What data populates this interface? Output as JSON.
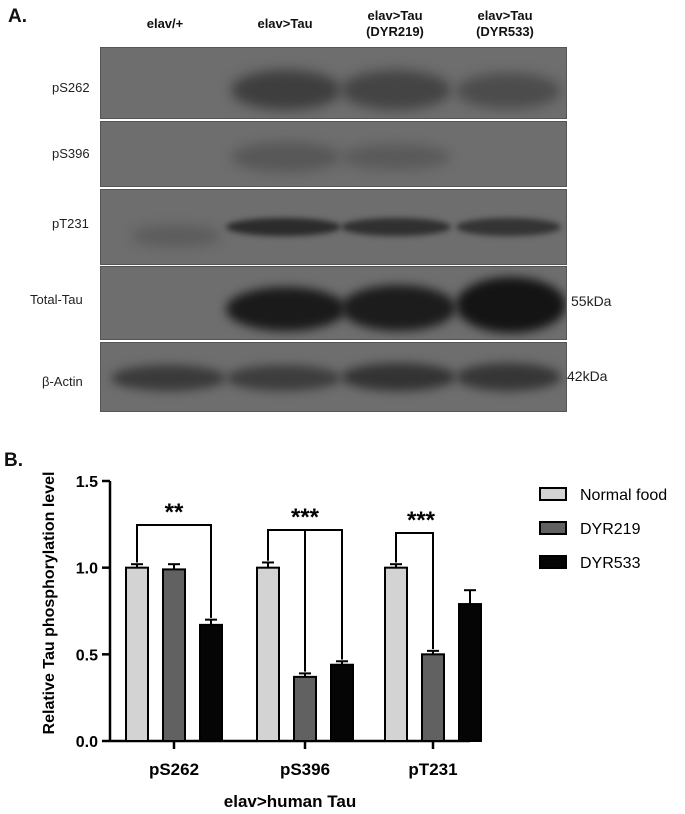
{
  "panel_a": {
    "letter": "A.",
    "lanes": [
      "elav/+",
      "elav>Tau",
      "elav>Tau\n(DYR219)",
      "elav>Tau\n(DYR533)"
    ],
    "rows": [
      "pS262",
      "pS396",
      "pT231",
      "Total-Tau",
      "β-Actin"
    ],
    "mw_markers": {
      "total_tau": "55kDa",
      "actin": "42kDa"
    }
  },
  "panel_b": {
    "letter": "B."
  },
  "chart_data": {
    "type": "bar",
    "categories": [
      "pS262",
      "pS396",
      "pT231"
    ],
    "series": [
      {
        "name": "Normal food",
        "values": [
          1.0,
          1.0,
          1.0
        ],
        "errors": [
          0.02,
          0.03,
          0.02
        ],
        "color": "#d3d3d3"
      },
      {
        "name": "DYR219",
        "values": [
          0.99,
          0.37,
          0.5
        ],
        "errors": [
          0.03,
          0.02,
          0.02
        ],
        "color": "#616161"
      },
      {
        "name": "DYR533",
        "values": [
          0.67,
          0.44,
          0.79
        ],
        "errors": [
          0.03,
          0.02,
          0.08
        ],
        "color": "#050505"
      }
    ],
    "xlabel": "elav>human Tau",
    "ylabel": "Relative Tau phosphorylation level",
    "ylim": [
      0,
      1.5
    ],
    "yticks": [
      "0.0",
      "0.5",
      "1.0",
      "1.5"
    ],
    "significance": [
      "**",
      "***",
      "***"
    ],
    "legend_position": "right"
  }
}
